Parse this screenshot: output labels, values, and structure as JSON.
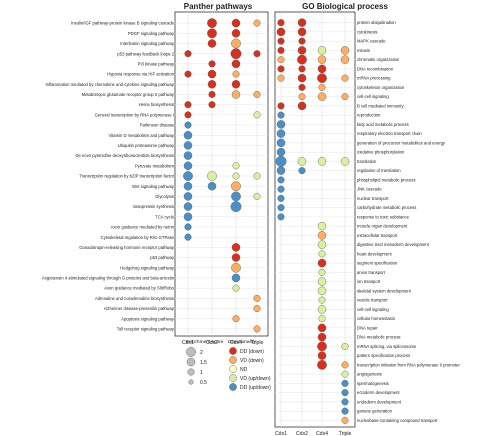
{
  "chart_data": {
    "type": "scatter",
    "title": "",
    "columns": [
      "Cdx1",
      "Cdx2",
      "Cdx4",
      "Triple"
    ],
    "panels": [
      {
        "title": "Panther pathways",
        "terms": [
          "Insulin/IGF pathway-protein kinase B signaling cascade",
          "PDGF signaling pathway",
          "Interleukin signaling pathway",
          "p53 pathway feedback loops 2",
          "PI3 kinase pathway",
          "Hypoxia response via HIF activation",
          "Inflammation mediated by chemokine and cytokine signaling pathway",
          "Metabotropic glutamate receptor group II pathway",
          "Heme biosynthesis",
          "General transcription by RNA polymerase I",
          "Parkinson disease",
          "Vitamin D metabolism and pathway",
          "Ubiquitin proteasome pathway",
          "De novo pyrimidine deoxyribonucleotide biosynthesis",
          "Pyruvate metabolism",
          "Transcription regulation by bZIP transcription factor",
          "Wnt signaling pathway",
          "Glycolysis",
          "Vasopressin synthesis",
          "TCA cycle",
          "Axon guidance mediated by netrin",
          "Cytoskeletal regulation by Rho GTPase",
          "Gonadotropin-releasing hormone receptor pathway",
          "p53 pathway",
          "Hedgehog signaling pathway",
          "Angiotensin II-stimulated signaling through G proteins and beta-arrestin",
          "Axon guidance mediated by Slit/Robo",
          "Adrenaline and noradrenaline biosynthesis",
          "Alzheimer disease-presenilin pathway",
          "Apoptosis signaling pathway",
          "Toll receptor signaling pathway"
        ],
        "points": [
          {
            "t": 0,
            "c": 1,
            "s": 2,
            "d": "DD"
          },
          {
            "t": 0,
            "c": 2,
            "s": 1.5,
            "d": "DD"
          },
          {
            "t": 0,
            "c": 3,
            "s": 1,
            "d": "VD"
          },
          {
            "t": 1,
            "c": 1,
            "s": 2,
            "d": "DD"
          },
          {
            "t": 1,
            "c": 2,
            "s": 1.5,
            "d": "DD"
          },
          {
            "t": 2,
            "c": 1,
            "s": 1.5,
            "d": "DD"
          },
          {
            "t": 2,
            "c": 2,
            "s": 2,
            "d": "VD"
          },
          {
            "t": 3,
            "c": 0,
            "s": 1,
            "d": "DD"
          },
          {
            "t": 3,
            "c": 2,
            "s": 2.5,
            "d": "DD"
          },
          {
            "t": 3,
            "c": 3,
            "s": 1,
            "d": "DD"
          },
          {
            "t": 4,
            "c": 1,
            "s": 1,
            "d": "DD"
          },
          {
            "t": 4,
            "c": 2,
            "s": 1.5,
            "d": "DD"
          },
          {
            "t": 5,
            "c": 0,
            "s": 1,
            "d": "DD"
          },
          {
            "t": 5,
            "c": 1,
            "s": 1.5,
            "d": "DD"
          },
          {
            "t": 5,
            "c": 2,
            "s": 1,
            "d": "VD"
          },
          {
            "t": 6,
            "c": 1,
            "s": 1.5,
            "d": "DD"
          },
          {
            "t": 6,
            "c": 2,
            "s": 1.5,
            "d": "DD"
          },
          {
            "t": 7,
            "c": 1,
            "s": 1,
            "d": "DD"
          },
          {
            "t": 7,
            "c": 2,
            "s": 1.5,
            "d": "VD"
          },
          {
            "t": 7,
            "c": 3,
            "s": 1,
            "d": "VD"
          },
          {
            "t": 8,
            "c": 0,
            "s": 1,
            "d": "DD"
          },
          {
            "t": 8,
            "c": 1,
            "s": 1,
            "d": "DD"
          },
          {
            "t": 9,
            "c": 0,
            "s": 1,
            "d": "DD"
          },
          {
            "t": 9,
            "c": 3,
            "s": 1,
            "d": "VU"
          },
          {
            "t": 10,
            "c": 0,
            "s": 1,
            "d": "DU"
          },
          {
            "t": 11,
            "c": 0,
            "s": 1.5,
            "d": "DU"
          },
          {
            "t": 12,
            "c": 0,
            "s": 1.5,
            "d": "DU"
          },
          {
            "t": 13,
            "c": 0,
            "s": 1.5,
            "d": "DU"
          },
          {
            "t": 14,
            "c": 0,
            "s": 1.5,
            "d": "DU"
          },
          {
            "t": 14,
            "c": 2,
            "s": 1,
            "d": "VU"
          },
          {
            "t": 15,
            "c": 0,
            "s": 2,
            "d": "DU"
          },
          {
            "t": 15,
            "c": 1,
            "s": 2,
            "d": "VU"
          },
          {
            "t": 15,
            "c": 2,
            "s": 1,
            "d": "VU"
          },
          {
            "t": 15,
            "c": 3,
            "s": 1,
            "d": "VU"
          },
          {
            "t": 16,
            "c": 0,
            "s": 1.5,
            "d": "DU"
          },
          {
            "t": 16,
            "c": 1,
            "s": 1.5,
            "d": "DU"
          },
          {
            "t": 16,
            "c": 2,
            "s": 2,
            "d": "VD"
          },
          {
            "t": 17,
            "c": 0,
            "s": 1.5,
            "d": "DU"
          },
          {
            "t": 17,
            "c": 2,
            "s": 2,
            "d": "DU"
          },
          {
            "t": 17,
            "c": 3,
            "s": 1,
            "d": "VU"
          },
          {
            "t": 18,
            "c": 0,
            "s": 1.5,
            "d": "DU"
          },
          {
            "t": 18,
            "c": 2,
            "s": 2.5,
            "d": "DU"
          },
          {
            "t": 19,
            "c": 0,
            "s": 1.5,
            "d": "DU"
          },
          {
            "t": 20,
            "c": 0,
            "s": 1,
            "d": "DU"
          },
          {
            "t": 21,
            "c": 0,
            "s": 1,
            "d": "DU"
          },
          {
            "t": 22,
            "c": 2,
            "s": 1.5,
            "d": "DD"
          },
          {
            "t": 23,
            "c": 2,
            "s": 1.5,
            "d": "DD"
          },
          {
            "t": 24,
            "c": 2,
            "s": 2,
            "d": "VD"
          },
          {
            "t": 25,
            "c": 2,
            "s": 1.5,
            "d": "DU"
          },
          {
            "t": 26,
            "c": 2,
            "s": 1,
            "d": "VU"
          },
          {
            "t": 27,
            "c": 3,
            "s": 1,
            "d": "VD"
          },
          {
            "t": 28,
            "c": 3,
            "s": 1,
            "d": "VD"
          },
          {
            "t": 29,
            "c": 2,
            "s": 1,
            "d": "VD"
          },
          {
            "t": 30,
            "c": 3,
            "s": 1,
            "d": "VD"
          }
        ]
      },
      {
        "title": "GO Biological process",
        "terms": [
          "protein ubiquitination",
          "cytokinesis",
          "MAPK cascade",
          "mitosis",
          "chromatin organization",
          "DNA recombination",
          "mRNA processing",
          "cytoskeleton organization",
          "cell-cell signaling",
          "B cell mediated immunity",
          "reproduction",
          "fatty acid metabolic process",
          "respiratory electron transport chain",
          "generation of precursor metabolites and energy",
          "oxidative phosphorylation",
          "translation",
          "regulation of translation",
          "phospholipid metabolic process",
          "JNK cascade",
          "nuclear transport",
          "carbohydrate metabolic process",
          "response to toxic substance",
          "muscle organ development",
          "extracellular transport",
          "digestive tract mesoderm development",
          "heart development",
          "segment specification",
          "anion transport",
          "ion transport",
          "skeletal system development",
          "vesicle transport",
          "cell-cell signaling",
          "cellular homeostasis",
          "DNA repair",
          "DNA metabolic process",
          "mRNA splicing, via spliceosome",
          "pattern specification process",
          "transcription initiation from RNA polymerase II promoter",
          "angiogenesis",
          "spermatogenesis",
          "ectoderm development",
          "endoderm development",
          "gamete generation",
          "nucleobase-containing compound transport"
        ],
        "points": [
          {
            "t": 0,
            "c": 0,
            "s": 1,
            "d": "DD"
          },
          {
            "t": 0,
            "c": 1,
            "s": 1.5,
            "d": "DD"
          },
          {
            "t": 1,
            "c": 0,
            "s": 1.5,
            "d": "DD"
          },
          {
            "t": 1,
            "c": 1,
            "s": 1.5,
            "d": "DD"
          },
          {
            "t": 2,
            "c": 0,
            "s": 1,
            "d": "DD"
          },
          {
            "t": 2,
            "c": 1,
            "s": 1,
            "d": "DD"
          },
          {
            "t": 3,
            "c": 0,
            "s": 1,
            "d": "DD"
          },
          {
            "t": 3,
            "c": 1,
            "s": 1.5,
            "d": "DD"
          },
          {
            "t": 3,
            "c": 2,
            "s": 1.5,
            "d": "VU"
          },
          {
            "t": 3,
            "c": 3,
            "s": 1.5,
            "d": "VD"
          },
          {
            "t": 4,
            "c": 0,
            "s": 1,
            "d": "VD"
          },
          {
            "t": 4,
            "c": 1,
            "s": 2,
            "d": "DD"
          },
          {
            "t": 4,
            "c": 2,
            "s": 1.5,
            "d": "VD"
          },
          {
            "t": 4,
            "c": 3,
            "s": 1.5,
            "d": "VD"
          },
          {
            "t": 5,
            "c": 0,
            "s": 1,
            "d": "DD"
          },
          {
            "t": 5,
            "c": 1,
            "s": 1,
            "d": "DD"
          },
          {
            "t": 5,
            "c": 2,
            "s": 1.5,
            "d": "DD"
          },
          {
            "t": 6,
            "c": 0,
            "s": 1,
            "d": "VD"
          },
          {
            "t": 6,
            "c": 1,
            "s": 1.5,
            "d": "DD"
          },
          {
            "t": 6,
            "c": 2,
            "s": 2,
            "d": "DD"
          },
          {
            "t": 6,
            "c": 3,
            "s": 1,
            "d": "VD"
          },
          {
            "t": 7,
            "c": 1,
            "s": 1,
            "d": "DD"
          },
          {
            "t": 7,
            "c": 2,
            "s": 1,
            "d": "VD"
          },
          {
            "t": 8,
            "c": 1,
            "s": 1,
            "d": "VD"
          },
          {
            "t": 8,
            "c": 2,
            "s": 1.5,
            "d": "VD"
          },
          {
            "t": 8,
            "c": 3,
            "s": 1,
            "d": "VD"
          },
          {
            "t": 9,
            "c": 0,
            "s": 1,
            "d": "DD"
          },
          {
            "t": 9,
            "c": 1,
            "s": 1.5,
            "d": "DD"
          },
          {
            "t": 10,
            "c": 0,
            "s": 1,
            "d": "DU"
          },
          {
            "t": 11,
            "c": 0,
            "s": 1.5,
            "d": "DU"
          },
          {
            "t": 12,
            "c": 0,
            "s": 1.5,
            "d": "DU"
          },
          {
            "t": 13,
            "c": 0,
            "s": 1.5,
            "d": "DU"
          },
          {
            "t": 14,
            "c": 0,
            "s": 1.5,
            "d": "DU"
          },
          {
            "t": 15,
            "c": 0,
            "s": 2.5,
            "d": "DU"
          },
          {
            "t": 15,
            "c": 1,
            "s": 1.5,
            "d": "VU"
          },
          {
            "t": 15,
            "c": 2,
            "s": 1.5,
            "d": "VU"
          },
          {
            "t": 15,
            "c": 3,
            "s": 1.5,
            "d": "VU"
          },
          {
            "t": 16,
            "c": 0,
            "s": 1.5,
            "d": "DU"
          },
          {
            "t": 16,
            "c": 1,
            "s": 1,
            "d": "DU"
          },
          {
            "t": 17,
            "c": 0,
            "s": 1,
            "d": "DU"
          },
          {
            "t": 18,
            "c": 0,
            "s": 1,
            "d": "DU"
          },
          {
            "t": 19,
            "c": 0,
            "s": 1,
            "d": "DU"
          },
          {
            "t": 20,
            "c": 0,
            "s": 1,
            "d": "DU"
          },
          {
            "t": 21,
            "c": 0,
            "s": 1,
            "d": "DU"
          },
          {
            "t": 22,
            "c": 2,
            "s": 1.5,
            "d": "VU"
          },
          {
            "t": 23,
            "c": 2,
            "s": 1.5,
            "d": "VD"
          },
          {
            "t": 24,
            "c": 2,
            "s": 1.5,
            "d": "VU"
          },
          {
            "t": 25,
            "c": 2,
            "s": 1,
            "d": "VU"
          },
          {
            "t": 26,
            "c": 2,
            "s": 1.5,
            "d": "DD"
          },
          {
            "t": 27,
            "c": 2,
            "s": 1,
            "d": "VU"
          },
          {
            "t": 28,
            "c": 2,
            "s": 1.5,
            "d": "VU"
          },
          {
            "t": 29,
            "c": 2,
            "s": 1.5,
            "d": "VU"
          },
          {
            "t": 30,
            "c": 2,
            "s": 1,
            "d": "VU"
          },
          {
            "t": 31,
            "c": 2,
            "s": 1.5,
            "d": "VU"
          },
          {
            "t": 32,
            "c": 2,
            "s": 1,
            "d": "VU"
          },
          {
            "t": 33,
            "c": 2,
            "s": 1.5,
            "d": "DD"
          },
          {
            "t": 34,
            "c": 2,
            "s": 1.5,
            "d": "DD"
          },
          {
            "t": 35,
            "c": 2,
            "s": 2,
            "d": "DD"
          },
          {
            "t": 35,
            "c": 3,
            "s": 1,
            "d": "VU"
          },
          {
            "t": 36,
            "c": 2,
            "s": 1.5,
            "d": "DD"
          },
          {
            "t": 37,
            "c": 2,
            "s": 2,
            "d": "DD"
          },
          {
            "t": 37,
            "c": 3,
            "s": 1,
            "d": "VD"
          },
          {
            "t": 38,
            "c": 3,
            "s": 1,
            "d": "VU"
          },
          {
            "t": 39,
            "c": 3,
            "s": 1,
            "d": "DU"
          },
          {
            "t": 40,
            "c": 3,
            "s": 1,
            "d": "DU"
          },
          {
            "t": 41,
            "c": 3,
            "s": 1,
            "d": "DU"
          },
          {
            "t": 42,
            "c": 3,
            "s": 1,
            "d": "DU"
          },
          {
            "t": 43,
            "c": 3,
            "s": 1,
            "d": "VD"
          }
        ]
      }
    ],
    "legend": {
      "size_title": "Enrichment score",
      "sizes": [
        2,
        1.5,
        1,
        0.5
      ],
      "size_labels": [
        "2",
        "1.5",
        "1",
        "0.5"
      ],
      "direction_title": "Directionality",
      "directions": [
        {
          "key": "DD",
          "label": "DD (down)",
          "color": "#d7301f"
        },
        {
          "key": "VD",
          "label": "VD (down)",
          "color": "#fdae61"
        },
        {
          "key": "ND",
          "label": "ND",
          "color": "#ffffbf"
        },
        {
          "key": "VU",
          "label": "VD (up/down)",
          "color": "#d9f0a3"
        },
        {
          "key": "DU",
          "label": "DD (up/down)",
          "color": "#4a90c8"
        }
      ]
    }
  }
}
